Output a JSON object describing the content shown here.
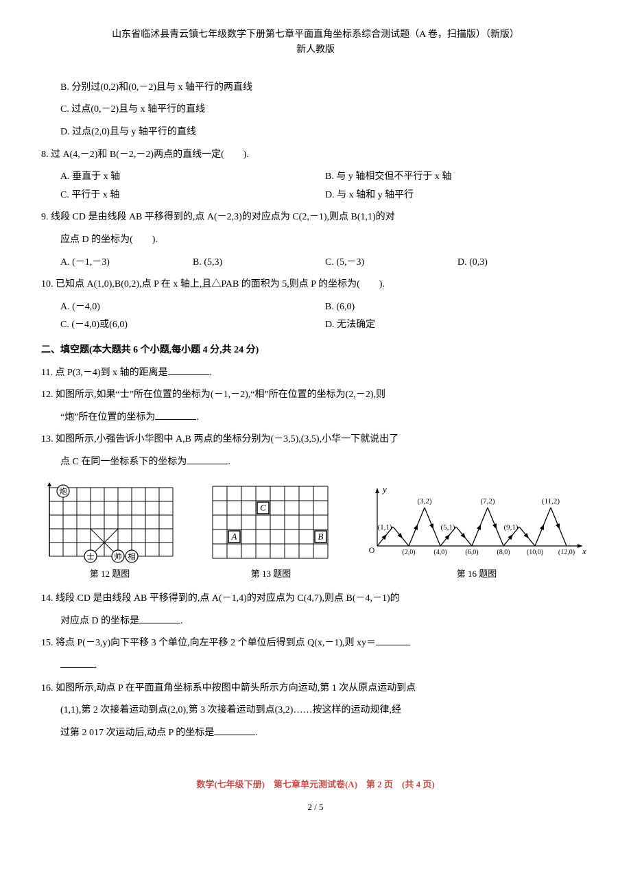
{
  "header": {
    "line1": "山东省临沭县青云镇七年级数学下册第七章平面直角坐标系综合测试题（A 卷，扫描版）（新版）",
    "line2": "新人教版"
  },
  "q7": {
    "B": "B. 分别过(0,2)和(0,－2)且与 x 轴平行的两直线",
    "C": "C. 过点(0,－2)且与 x 轴平行的直线",
    "D": "D. 过点(2,0)且与 y 轴平行的直线"
  },
  "q8": {
    "stem": "8. 过 A(4,－2)和 B(－2,－2)两点的直线一定(　　).",
    "A": "A. 垂直于 x 轴",
    "B": "B. 与 y 轴相交但不平行于 x 轴",
    "C": "C. 平行于 x 轴",
    "D": "D. 与 x 轴和 y 轴平行"
  },
  "q9": {
    "stem1": "9. 线段 CD 是由线段 AB 平移得到的,点 A(－2,3)的对应点为 C(2,－1),则点 B(1,1)的对",
    "stem2": "应点 D 的坐标为(　　).",
    "A": "A. (－1,－3)",
    "B": "B. (5,3)",
    "C": "C. (5,－3)",
    "D": "D. (0,3)"
  },
  "q10": {
    "stem": "10. 已知点 A(1,0),B(0,2),点 P 在 x 轴上,且△PAB 的面积为 5,则点 P 的坐标为(　　).",
    "A": "A. (－4,0)",
    "B": "B. (6,0)",
    "C": "C. (－4,0)或(6,0)",
    "D": "D. 无法确定"
  },
  "section2": "二、填空题(本大题共 6 个小题,每小题 4 分,共 24 分)",
  "q11": {
    "pre": "11. 点 P(3,－4)到 x 轴的距离是",
    "post": "."
  },
  "q12": {
    "line1": "12. 如图所示,如果“士”所在位置的坐标为(－1,－2),“相”所在位置的坐标为(2,－2),则",
    "line2pre": "“炮”所在位置的坐标为",
    "line2post": "."
  },
  "q13": {
    "line1": "13. 如图所示,小强告诉小华图中 A,B 两点的坐标分别为(－3,5),(3,5),小华一下就说出了",
    "line2pre": "点 C 在同一坐标系下的坐标为",
    "line2post": "."
  },
  "fig12": {
    "caption": "第 12 题图",
    "pieces": {
      "pao": "炮",
      "shi": "士",
      "shuai": "帅",
      "xiang": "相"
    },
    "grid": {
      "cols": 9,
      "rows": 5,
      "cell": 20,
      "stroke": "#000000",
      "fill": "#ffffff"
    }
  },
  "fig13": {
    "caption": "第 13 题图",
    "labels": {
      "A": "A",
      "B": "B",
      "C": "C"
    },
    "grid": {
      "cols": 8,
      "rows": 5,
      "cell": 21,
      "stroke": "#000000"
    }
  },
  "fig16": {
    "caption": "第 16 题图",
    "axis_labels": {
      "y": "y",
      "x": "x",
      "O": "O"
    },
    "top_labels": [
      "(3,2)",
      "(7,2)",
      "(11,2)"
    ],
    "mid_labels": [
      "(1,1)",
      "(5,1)",
      "(9,1)"
    ],
    "x_labels": [
      "(2,0)",
      "(4,0)",
      "(6,0)",
      "(8,0)",
      "(10,0)",
      "(12,0)"
    ],
    "colors": {
      "stroke": "#000000"
    }
  },
  "q14": {
    "line1": "14. 线段 CD 是由线段 AB 平移得到的,点 A(－1,4)的对应点为 C(4,7),则点 B(－4,－1)的",
    "line2pre": "对应点 D 的坐标是",
    "line2post": "."
  },
  "q15": {
    "pre": "15. 将点 P(－3,y)向下平移 3 个单位,向左平移 2 个单位后得到点 Q(x,－1),则 xy＝",
    "post": "."
  },
  "q16": {
    "line1": "16. 如图所示,动点 P 在平面直角坐标系中按图中箭头所示方向运动,第 1 次从原点运动到点",
    "line2": "(1,1),第 2 次接着运动到点(2,0),第 3 次接着运动到点(3,2)……按这样的运动规律,经",
    "line3pre": "过第 2 017 次运动后,动点 P 的坐标是",
    "line3post": "."
  },
  "footer": "数学(七年级下册)　第七章单元测试卷(A)　第 2 页　(共 4 页)",
  "pagenum": "2 / 5"
}
